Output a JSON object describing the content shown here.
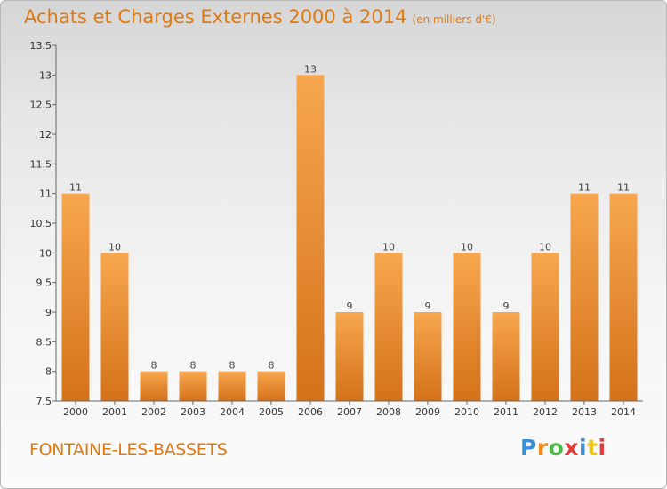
{
  "chart_data": {
    "type": "bar",
    "title": "Achats et Charges Externes 2000 à 2014",
    "unit_note": "(en milliers d'€)",
    "categories": [
      "2000",
      "2001",
      "2002",
      "2003",
      "2004",
      "2005",
      "2006",
      "2007",
      "2008",
      "2009",
      "2010",
      "2011",
      "2012",
      "2013",
      "2014"
    ],
    "values": [
      11,
      10,
      8,
      8,
      8,
      8,
      13,
      9,
      10,
      9,
      10,
      9,
      10,
      11,
      11
    ],
    "value_labels": [
      "11",
      "10",
      "8",
      "8",
      "8",
      "8",
      "13",
      "9",
      "10",
      "9",
      "10",
      "9",
      "10",
      "11",
      "11"
    ],
    "y_ticks": [
      "7.5",
      "8",
      "8.5",
      "9",
      "9.5",
      "10",
      "10.5",
      "11",
      "11.5",
      "12",
      "12.5",
      "13",
      "13.5"
    ],
    "ylim": [
      7.5,
      13.5
    ],
    "grid": false,
    "bar_color_light": "#f7a74f",
    "bar_color_dark": "#d4721a"
  },
  "footer": {
    "place": "FONTAINE-LES-BASSETS"
  },
  "logo": {
    "text": "Proxiti",
    "colors": [
      "#3a8fd6",
      "#f08a1c",
      "#4db848",
      "#e23b3b",
      "#3a8fd6",
      "#f0c419",
      "#e23b3b"
    ]
  }
}
